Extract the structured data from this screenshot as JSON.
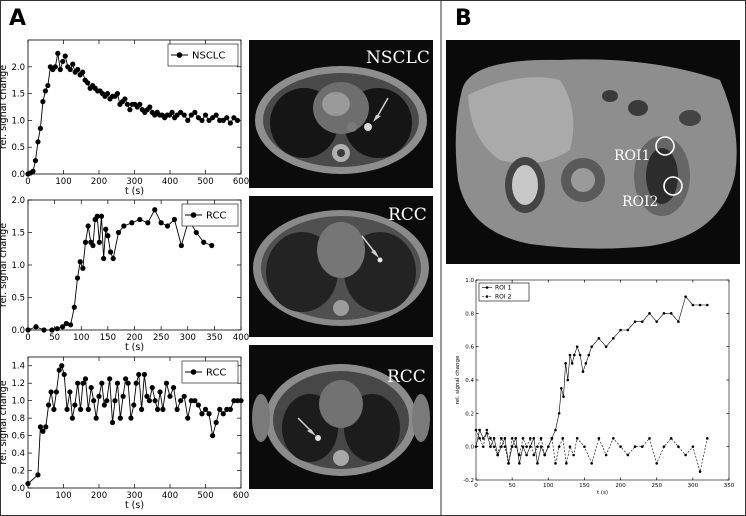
{
  "figure": {
    "panels": {
      "a": "A",
      "b": "B"
    },
    "image_labels": {
      "nsclc": "NSCLC",
      "rcc_top": "RCC",
      "rcc_bottom": "RCC",
      "roi1": "ROI1",
      "roi2": "ROI2"
    }
  },
  "chart_data": [
    {
      "type": "line",
      "id": "a1",
      "title": "",
      "xlabel": "t (s)",
      "ylabel": "rel. signal change",
      "xlim": [
        0,
        600
      ],
      "ylim": [
        0,
        2.5
      ],
      "xticks": [
        0,
        100,
        200,
        300,
        400,
        500,
        600
      ],
      "yticks": [
        0.0,
        0.5,
        1.0,
        1.5,
        2.0
      ],
      "legend": "top-right",
      "series": [
        {
          "name": "NSCLC",
          "x": [
            0,
            7,
            14,
            21,
            28,
            35,
            42,
            49,
            56,
            63,
            70,
            77,
            84,
            91,
            98,
            105,
            112,
            119,
            126,
            133,
            140,
            147,
            154,
            161,
            168,
            175,
            182,
            189,
            196,
            203,
            210,
            217,
            224,
            231,
            238,
            245,
            252,
            259,
            266,
            273,
            280,
            287,
            294,
            301,
            308,
            315,
            322,
            329,
            336,
            343,
            350,
            357,
            364,
            371,
            378,
            385,
            392,
            399,
            406,
            413,
            420,
            430,
            440,
            450,
            460,
            470,
            480,
            490,
            500,
            510,
            520,
            530,
            540,
            550,
            560,
            570,
            580,
            590
          ],
          "y": [
            0.0,
            0.02,
            0.05,
            0.25,
            0.6,
            0.85,
            1.35,
            1.55,
            1.65,
            2.0,
            1.95,
            2.0,
            2.25,
            1.95,
            2.1,
            2.2,
            2.0,
            1.95,
            2.05,
            1.9,
            1.95,
            1.85,
            1.9,
            1.75,
            1.7,
            1.6,
            1.65,
            1.6,
            1.55,
            1.55,
            1.5,
            1.45,
            1.5,
            1.4,
            1.45,
            1.45,
            1.5,
            1.3,
            1.35,
            1.4,
            1.3,
            1.2,
            1.3,
            1.3,
            1.25,
            1.3,
            1.2,
            1.15,
            1.2,
            1.25,
            1.15,
            1.1,
            1.15,
            1.1,
            1.1,
            1.05,
            1.1,
            1.1,
            1.15,
            1.05,
            1.1,
            1.15,
            1.1,
            1.0,
            1.1,
            1.15,
            1.05,
            1.0,
            1.1,
            1.0,
            1.05,
            1.1,
            1.0,
            1.0,
            1.05,
            0.95,
            1.05,
            1.0
          ]
        }
      ]
    },
    {
      "type": "line",
      "id": "a2",
      "title": "",
      "xlabel": "t (s)",
      "ylabel": "rel. signal change",
      "xlim": [
        0,
        400
      ],
      "ylim": [
        0,
        2.0
      ],
      "xticks": [
        0,
        50,
        100,
        150,
        200,
        250,
        300,
        350,
        400
      ],
      "yticks": [
        0.0,
        0.5,
        1.0,
        1.5,
        2.0
      ],
      "legend": "top-right",
      "series": [
        {
          "name": "RCC",
          "x": [
            0,
            15,
            30,
            45,
            55,
            65,
            72,
            80,
            87,
            93,
            98,
            103,
            108,
            113,
            118,
            122,
            126,
            130,
            134,
            138,
            142,
            146,
            150,
            155,
            160,
            170,
            180,
            195,
            210,
            225,
            238,
            250,
            262,
            275,
            288,
            302,
            316,
            330,
            345
          ],
          "y": [
            0.0,
            0.05,
            0.0,
            0.0,
            0.02,
            0.05,
            0.1,
            0.08,
            0.35,
            0.8,
            1.05,
            0.95,
            1.35,
            1.6,
            1.35,
            1.3,
            1.7,
            1.75,
            1.35,
            1.75,
            1.1,
            1.55,
            1.45,
            1.2,
            1.1,
            1.5,
            1.6,
            1.65,
            1.7,
            1.65,
            1.85,
            1.65,
            1.6,
            1.7,
            1.3,
            1.7,
            1.5,
            1.35,
            1.3
          ]
        }
      ]
    },
    {
      "type": "line",
      "id": "a3",
      "title": "",
      "xlabel": "t (s)",
      "ylabel": "rel. signal change",
      "xlim": [
        0,
        600
      ],
      "ylim": [
        0,
        1.5
      ],
      "xticks": [
        0,
        100,
        200,
        300,
        400,
        500,
        600
      ],
      "yticks": [
        0.0,
        0.2,
        0.4,
        0.6,
        0.8,
        1.0,
        1.2,
        1.4
      ],
      "legend": "top-right",
      "series": [
        {
          "name": "RCC",
          "x": [
            0,
            28,
            35,
            42,
            50,
            58,
            65,
            73,
            80,
            88,
            95,
            102,
            110,
            118,
            125,
            132,
            140,
            148,
            155,
            162,
            170,
            178,
            185,
            192,
            200,
            208,
            215,
            222,
            230,
            238,
            245,
            252,
            260,
            268,
            275,
            282,
            290,
            298,
            305,
            312,
            320,
            328,
            335,
            342,
            350,
            358,
            365,
            372,
            380,
            390,
            400,
            410,
            420,
            430,
            440,
            450,
            460,
            470,
            480,
            490,
            500,
            510,
            520,
            530,
            540,
            550,
            560,
            570,
            580,
            590,
            600
          ],
          "y": [
            0.05,
            0.15,
            0.7,
            0.65,
            0.7,
            0.95,
            1.1,
            0.9,
            1.1,
            1.35,
            1.4,
            1.3,
            0.9,
            1.1,
            0.8,
            0.95,
            1.2,
            0.9,
            1.2,
            1.25,
            0.9,
            1.15,
            1.0,
            0.8,
            1.05,
            1.2,
            0.95,
            1.0,
            1.25,
            0.75,
            1.0,
            1.2,
            0.8,
            1.05,
            1.25,
            1.2,
            0.8,
            0.95,
            1.2,
            1.3,
            0.9,
            1.3,
            1.05,
            1.0,
            1.15,
            1.0,
            0.9,
            1.1,
            0.9,
            1.2,
            1.05,
            1.15,
            0.9,
            1.0,
            1.05,
            0.8,
            1.0,
            1.0,
            0.95,
            0.85,
            0.9,
            0.85,
            0.6,
            0.75,
            0.9,
            0.85,
            0.9,
            0.9,
            1.0,
            1.0,
            1.0
          ]
        }
      ]
    },
    {
      "type": "line",
      "id": "b",
      "title": "",
      "xlabel": "t (s)",
      "ylabel": "rel. signal change",
      "xlim": [
        0,
        350
      ],
      "ylim": [
        -0.2,
        1.0
      ],
      "xticks": [
        0,
        50,
        100,
        150,
        200,
        250,
        300,
        350
      ],
      "yticks": [
        -0.2,
        0.0,
        0.2,
        0.4,
        0.6,
        0.8,
        1.0
      ],
      "legend": "top-left",
      "series": [
        {
          "name": "ROI 1",
          "x": [
            0,
            5,
            10,
            15,
            20,
            25,
            30,
            35,
            40,
            45,
            50,
            55,
            60,
            65,
            70,
            75,
            80,
            85,
            90,
            95,
            100,
            105,
            110,
            115,
            118,
            121,
            124,
            127,
            130,
            133,
            136,
            140,
            144,
            148,
            152,
            156,
            160,
            170,
            180,
            190,
            200,
            210,
            220,
            230,
            240,
            250,
            260,
            270,
            280,
            290,
            300,
            310,
            320
          ],
          "y": [
            0.0,
            0.1,
            0.05,
            0.08,
            0.0,
            0.05,
            -0.05,
            0.0,
            0.05,
            -0.1,
            0.0,
            0.05,
            -0.1,
            0.0,
            -0.05,
            0.0,
            0.05,
            -0.1,
            0.0,
            -0.05,
            0.0,
            0.05,
            0.1,
            0.2,
            0.35,
            0.3,
            0.5,
            0.4,
            0.55,
            0.5,
            0.55,
            0.6,
            0.55,
            0.45,
            0.5,
            0.55,
            0.6,
            0.65,
            0.6,
            0.65,
            0.7,
            0.7,
            0.75,
            0.75,
            0.8,
            0.75,
            0.8,
            0.8,
            0.75,
            0.9,
            0.85,
            0.85,
            0.85
          ]
        },
        {
          "name": "ROI 2",
          "x": [
            0,
            5,
            10,
            15,
            20,
            25,
            30,
            35,
            40,
            45,
            50,
            55,
            60,
            65,
            70,
            75,
            80,
            85,
            90,
            95,
            100,
            105,
            110,
            115,
            120,
            125,
            130,
            135,
            140,
            150,
            160,
            170,
            180,
            190,
            200,
            210,
            220,
            230,
            240,
            250,
            260,
            270,
            280,
            290,
            300,
            310,
            320
          ],
          "y": [
            0.1,
            0.05,
            0.0,
            0.1,
            0.05,
            0.0,
            -0.05,
            0.05,
            0.0,
            -0.1,
            0.05,
            0.0,
            -0.05,
            0.05,
            0.0,
            0.05,
            -0.05,
            0.0,
            0.05,
            -0.05,
            0.0,
            0.05,
            -0.1,
            0.0,
            0.05,
            -0.1,
            0.0,
            -0.05,
            0.05,
            0.0,
            -0.1,
            0.05,
            -0.05,
            0.05,
            0.0,
            -0.05,
            0.0,
            0.0,
            0.05,
            -0.1,
            0.0,
            0.05,
            0.0,
            -0.05,
            0.0,
            -0.15,
            0.05
          ]
        }
      ]
    }
  ]
}
